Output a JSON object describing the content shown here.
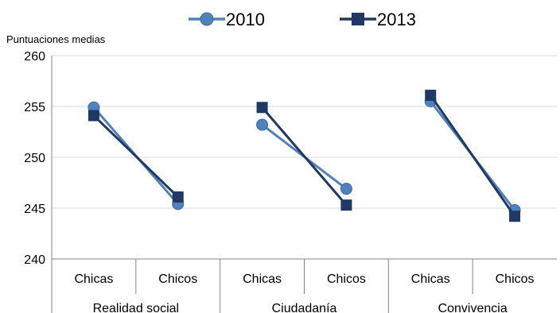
{
  "chart_data": {
    "type": "line",
    "unit_label": "Puntuaciones medias",
    "ylim": [
      240,
      260
    ],
    "yticks": [
      240,
      245,
      250,
      255,
      260
    ],
    "groups": [
      {
        "label": "Realidad social",
        "categories": [
          "Chicas",
          "Chicos"
        ]
      },
      {
        "label": "Ciudadanía",
        "categories": [
          "Chicas",
          "Chicos"
        ]
      },
      {
        "label": "Convivencia",
        "categories": [
          "Chicas",
          "Chicos"
        ]
      }
    ],
    "series": [
      {
        "name": "2010",
        "marker": "circle",
        "color": "#4f81bd",
        "values": [
          [
            254.9,
            245.4
          ],
          [
            253.2,
            246.9
          ],
          [
            255.5,
            244.8
          ]
        ]
      },
      {
        "name": "2013",
        "marker": "square",
        "color": "#1f3864",
        "values": [
          [
            254.1,
            246.1
          ],
          [
            254.9,
            245.3
          ],
          [
            256.1,
            244.2
          ]
        ]
      }
    ],
    "grid": true,
    "legend_position": "top"
  }
}
